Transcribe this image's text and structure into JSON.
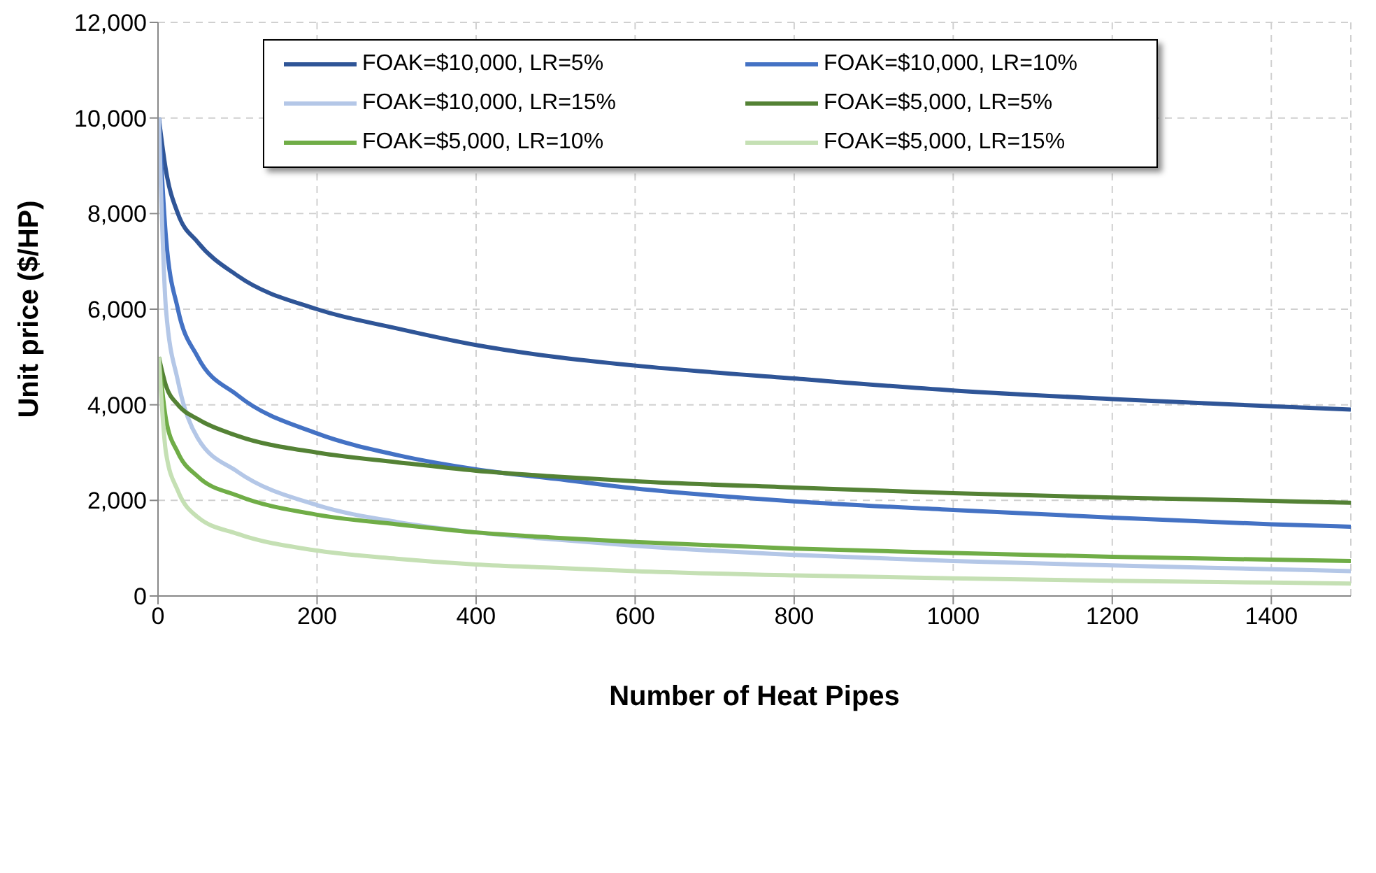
{
  "chart_data": {
    "type": "line",
    "xlabel": "Number of Heat Pipes",
    "ylabel": "Unit price ($/HP)",
    "xlim": [
      0,
      1500
    ],
    "xticks": [
      0,
      200,
      400,
      600,
      800,
      1000,
      1200,
      1400
    ],
    "ylim": [
      0,
      12000
    ],
    "yticks": [
      0,
      {
        "value": 2000,
        "label": "2,000"
      },
      {
        "value": 4000,
        "label": "4,000"
      },
      {
        "value": 6000,
        "label": "6,000"
      },
      {
        "value": 8000,
        "label": "8,000"
      },
      {
        "value": 10000,
        "label": "10,000"
      },
      {
        "value": 12000,
        "label": "12,000"
      }
    ],
    "x": [
      1,
      10,
      25,
      50,
      100,
      200,
      300,
      400,
      500,
      600,
      800,
      1000,
      1200,
      1400,
      1500
    ],
    "grid": true,
    "legend": "top",
    "marker": "none",
    "line_style": "solid",
    "series": [
      {
        "name": "FOAK=$10,000, LR=5%",
        "color": "#2f5597",
        "values": [
          10000,
          8900,
          8000,
          7400,
          6700,
          6000,
          5600,
          5250,
          5000,
          4820,
          4550,
          4300,
          4120,
          3970,
          3900
        ]
      },
      {
        "name": "FOAK=$10,000, LR=10%",
        "color": "#4472c4",
        "values": [
          10000,
          7500,
          6000,
          5000,
          4200,
          3400,
          2950,
          2650,
          2450,
          2250,
          1980,
          1800,
          1640,
          1500,
          1450
        ]
      },
      {
        "name": "FOAK=$10,000, LR=15%",
        "color": "#b4c7e7",
        "values": [
          10000,
          6000,
          4500,
          3300,
          2600,
          1900,
          1550,
          1330,
          1180,
          1050,
          860,
          730,
          640,
          560,
          520
        ]
      },
      {
        "name": "FOAK=$5,000, LR=5%",
        "color": "#548235",
        "values": [
          5000,
          4400,
          4000,
          3700,
          3350,
          3000,
          2800,
          2620,
          2500,
          2400,
          2270,
          2150,
          2060,
          1990,
          1950
        ]
      },
      {
        "name": "FOAK=$5,000, LR=10%",
        "color": "#70ad47",
        "values": [
          5000,
          3700,
          3000,
          2500,
          2100,
          1700,
          1500,
          1330,
          1220,
          1130,
          990,
          900,
          820,
          760,
          730
        ]
      },
      {
        "name": "FOAK=$5,000, LR=15%",
        "color": "#c5e0b4",
        "values": [
          5000,
          3000,
          2200,
          1650,
          1300,
          950,
          780,
          660,
          590,
          520,
          430,
          370,
          320,
          280,
          260
        ]
      }
    ]
  }
}
